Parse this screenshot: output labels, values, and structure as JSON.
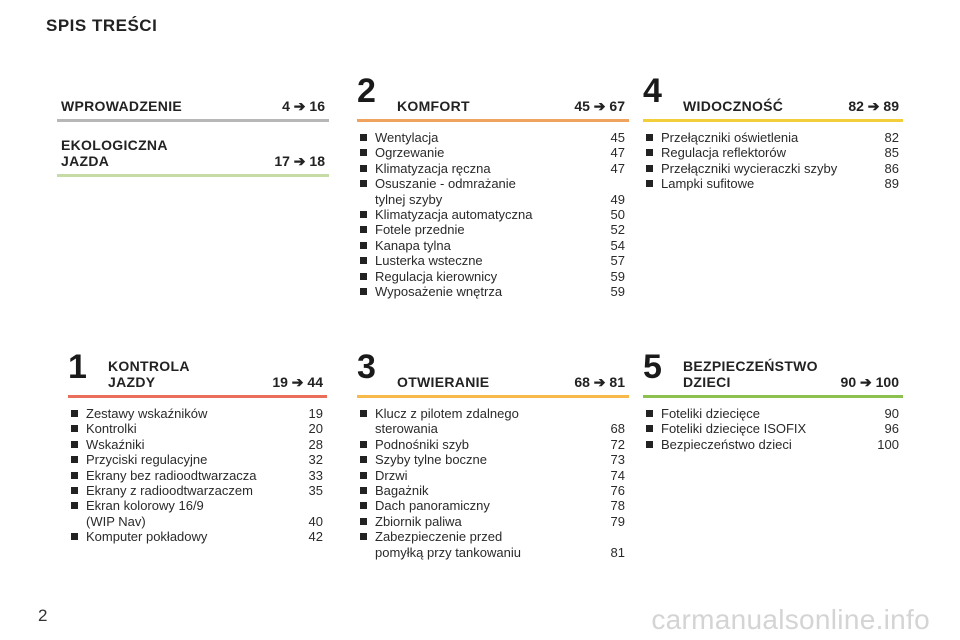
{
  "page_title": "SPIS TREŚCI",
  "page_number": "2",
  "watermark": "carmanualsonline.info",
  "arrow": "➔",
  "sections": {
    "wprowadzenie": {
      "title": "WPROWADZENIE",
      "from": "4",
      "to": "16",
      "color": "#b7b7b7"
    },
    "ekologiczna": {
      "title": "EKOLOGICZNA\nJAZDA",
      "from": "17",
      "to": "18",
      "color": "#c6dba6"
    },
    "komfort": {
      "num": "2",
      "title": "KOMFORT",
      "from": "45",
      "to": "67",
      "color": "#f0a35f",
      "items": [
        {
          "label": "Wentylacja",
          "page": "45"
        },
        {
          "label": "Ogrzewanie",
          "page": "47"
        },
        {
          "label": "Klimatyzacja ręczna",
          "page": "47"
        },
        {
          "label": "Osuszanie - odmrażanie\ntylnej szyby",
          "page": "49"
        },
        {
          "label": "Klimatyzacja automatyczna",
          "page": "50"
        },
        {
          "label": "Fotele przednie",
          "page": "52"
        },
        {
          "label": "Kanapa tylna",
          "page": "54"
        },
        {
          "label": "Lusterka wsteczne",
          "page": "57"
        },
        {
          "label": "Regulacja kierownicy",
          "page": "59"
        },
        {
          "label": "Wyposażenie wnętrza",
          "page": "59"
        }
      ]
    },
    "widocznosc": {
      "num": "4",
      "title": "WIDOCZNOŚĆ",
      "from": "82",
      "to": "89",
      "color": "#f2ce3a",
      "items": [
        {
          "label": "Przełączniki oświetlenia",
          "page": "82"
        },
        {
          "label": "Regulacja reflektorów",
          "page": "85"
        },
        {
          "label": "Przełączniki wycieraczki szyby",
          "page": "86"
        },
        {
          "label": "Lampki sufitowe",
          "page": "89"
        }
      ]
    },
    "kontrola": {
      "num": "1",
      "title": "KONTROLA\nJAZDY",
      "from": "19",
      "to": "44",
      "color": "#ea6f5a",
      "items": [
        {
          "label": "Zestawy wskaźników",
          "page": "19"
        },
        {
          "label": "Kontrolki",
          "page": "20"
        },
        {
          "label": "Wskaźniki",
          "page": "28"
        },
        {
          "label": "Przyciski regulacyjne",
          "page": "32"
        },
        {
          "label": "Ekrany bez radioodtwarzacza",
          "page": "33"
        },
        {
          "label": "Ekrany z radioodtwarzaczem",
          "page": "35"
        },
        {
          "label": "Ekran kolorowy 16/9\n(WIP Nav)",
          "page": "40"
        },
        {
          "label": "Komputer pokładowy",
          "page": "42"
        }
      ]
    },
    "otwieranie": {
      "num": "3",
      "title": "OTWIERANIE",
      "from": "68",
      "to": "81",
      "color": "#f6b94a",
      "items": [
        {
          "label": "Klucz z pilotem zdalnego\nsterowania",
          "page": "68"
        },
        {
          "label": "Podnośniki szyb",
          "page": "72"
        },
        {
          "label": "Szyby tylne boczne",
          "page": "73"
        },
        {
          "label": "Drzwi",
          "page": "74"
        },
        {
          "label": "Bagażnik",
          "page": "76"
        },
        {
          "label": "Dach panoramiczny",
          "page": "78"
        },
        {
          "label": "Zbiornik paliwa",
          "page": "79"
        },
        {
          "label": "Zabezpieczenie przed\npomyłką przy tankowaniu",
          "page": "81"
        }
      ]
    },
    "bezpieczenstwo": {
      "num": "5",
      "title": "BEZPIECZEŃSTWO\nDZIECI",
      "from": "90",
      "to": "100",
      "color": "#8cc04f",
      "items": [
        {
          "label": "Foteliki dziecięce",
          "page": "90"
        },
        {
          "label": "Foteliki dziecięce ISOFIX",
          "page": "96"
        },
        {
          "label": "Bezpieczeństwo dzieci",
          "page": "100"
        }
      ]
    }
  }
}
